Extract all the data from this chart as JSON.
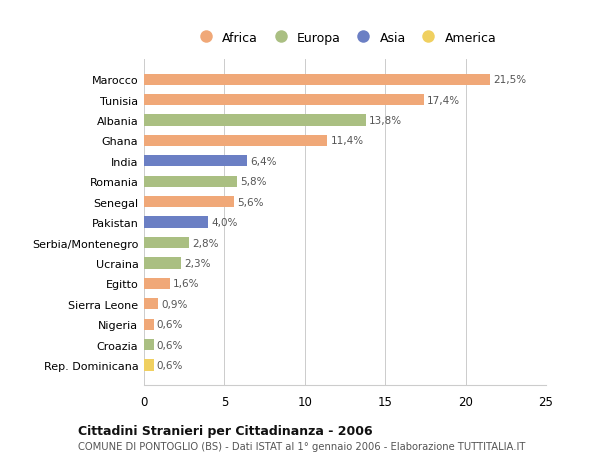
{
  "countries": [
    "Marocco",
    "Tunisia",
    "Albania",
    "Ghana",
    "India",
    "Romania",
    "Senegal",
    "Pakistan",
    "Serbia/Montenegro",
    "Ucraina",
    "Egitto",
    "Sierra Leone",
    "Nigeria",
    "Croazia",
    "Rep. Dominicana"
  ],
  "values": [
    21.5,
    17.4,
    13.8,
    11.4,
    6.4,
    5.8,
    5.6,
    4.0,
    2.8,
    2.3,
    1.6,
    0.9,
    0.6,
    0.6,
    0.6
  ],
  "continents": [
    "Africa",
    "Africa",
    "Europa",
    "Africa",
    "Asia",
    "Europa",
    "Africa",
    "Asia",
    "Europa",
    "Europa",
    "Africa",
    "Africa",
    "Africa",
    "Europa",
    "America"
  ],
  "colors": {
    "Africa": "#F0A878",
    "Europa": "#AABF82",
    "Asia": "#6B7FC4",
    "America": "#F0D060"
  },
  "legend_order": [
    "Africa",
    "Europa",
    "Asia",
    "America"
  ],
  "xlim": [
    0,
    25
  ],
  "xticks": [
    0,
    5,
    10,
    15,
    20,
    25
  ],
  "title": "Cittadini Stranieri per Cittadinanza - 2006",
  "subtitle": "COMUNE DI PONTOGLIO (BS) - Dati ISTAT al 1° gennaio 2006 - Elaborazione TUTTITALIA.IT",
  "bg_color": "#ffffff",
  "grid_color": "#cccccc"
}
